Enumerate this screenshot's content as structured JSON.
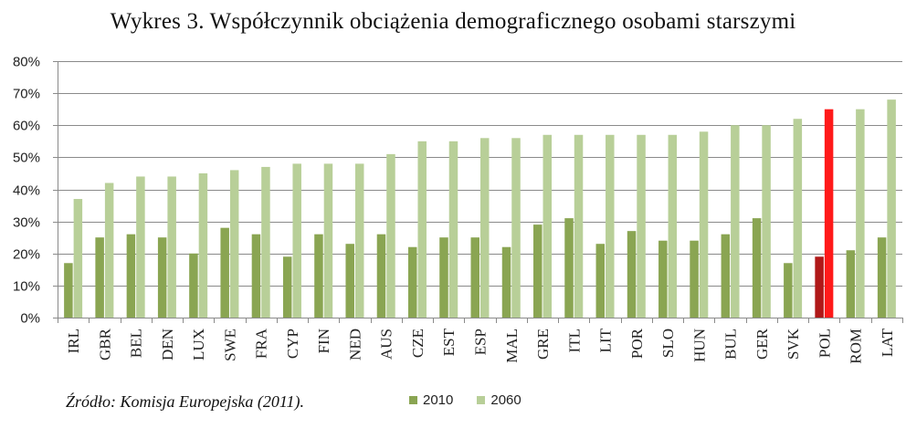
{
  "title": "Wykres 3. Współczynnik obciążenia demograficznego osobami starszymi",
  "source": "Źródło: Komisja Europejska (2011).",
  "colors": {
    "s2010": "#8aa552",
    "s2060": "#b8cf98",
    "highlight2010": "#b01818",
    "highlight2060": "#ff1a1a",
    "grid": "#8a8a8a"
  },
  "chart_data": {
    "type": "bar",
    "title": "Wykres 3. Współczynnik obciążenia demograficznego osobami starszymi",
    "xlabel": "",
    "ylabel": "",
    "ylim": [
      0,
      80
    ],
    "yticks": [
      "0%",
      "10%",
      "20%",
      "30%",
      "40%",
      "50%",
      "60%",
      "70%",
      "80%"
    ],
    "grid": true,
    "legend_position": "bottom",
    "highlight_category": "POL",
    "categories": [
      "IRL",
      "GBR",
      "BEL",
      "DEN",
      "LUX",
      "SWE",
      "FRA",
      "CYP",
      "FIN",
      "NED",
      "AUS",
      "CZE",
      "EST",
      "ESP",
      "MAL",
      "GRE",
      "ITL",
      "LIT",
      "POR",
      "SLO",
      "HUN",
      "BUL",
      "GER",
      "SVK",
      "POL",
      "ROM",
      "LAT"
    ],
    "series": [
      {
        "name": "2010",
        "values": [
          17,
          25,
          26,
          25,
          20,
          28,
          26,
          19,
          26,
          23,
          26,
          22,
          25,
          25,
          22,
          29,
          31,
          23,
          27,
          24,
          24,
          26,
          31,
          17,
          19,
          21,
          25
        ]
      },
      {
        "name": "2060",
        "values": [
          37,
          42,
          44,
          44,
          45,
          46,
          47,
          48,
          48,
          48,
          51,
          55,
          55,
          56,
          56,
          57,
          57,
          57,
          57,
          57,
          58,
          60,
          60,
          62,
          65,
          65,
          68
        ]
      }
    ]
  }
}
